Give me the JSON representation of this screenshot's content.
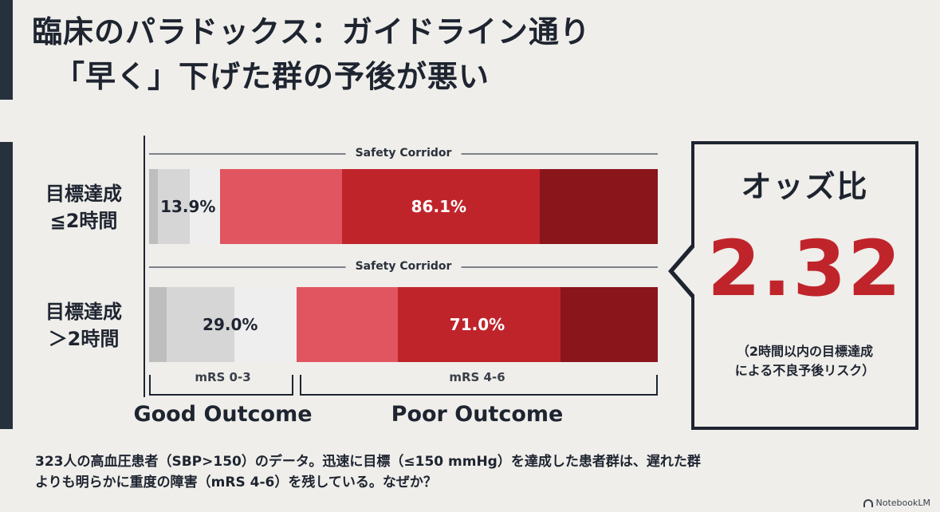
{
  "title": {
    "line1": "臨床のパラドックス：ガイドライン通り",
    "line2": "「早く」下げた群の予後が悪い"
  },
  "chart_data": {
    "type": "bar",
    "stacked": true,
    "orientation": "horizontal",
    "corridor_label": "Safety Corridor",
    "rows": [
      {
        "label_line1": "目標達成",
        "label_line2": "≦2時間",
        "good_pct": 13.9,
        "poor_pct": 86.1,
        "good_label": "13.9%",
        "poor_label": "86.1%"
      },
      {
        "label_line1": "目標達成",
        "label_line2": "＞2時間",
        "good_pct": 29.0,
        "poor_pct": 71.0,
        "good_label": "29.0%",
        "poor_label": "71.0%"
      }
    ],
    "good_range_label": "mRS 0-3",
    "poor_range_label": "mRS 4-6",
    "good_outcome_label": "Good Outcome",
    "poor_outcome_label": "Poor Outcome",
    "colors": {
      "good": [
        "#bebebe",
        "#d6d6d6",
        "#eeeeee"
      ],
      "poor": [
        "#e05560",
        "#c0242b",
        "#8a151b"
      ]
    }
  },
  "odds": {
    "title": "オッズ比",
    "value": "2.32",
    "note_line1": "（2時間以内の目標達成",
    "note_line2": "による不良予後リスク）",
    "value_color": "#c0242b"
  },
  "caption": {
    "line1": "323人の高血圧患者（SBP>150）のデータ。迅速に目標（≤150 mmHg）を達成した患者群は、遅れた群",
    "line2": "よりも明らかに重度の障害（mRS 4-6）を残している。なぜか？"
  },
  "brand": {
    "name": "NotebookLM"
  }
}
